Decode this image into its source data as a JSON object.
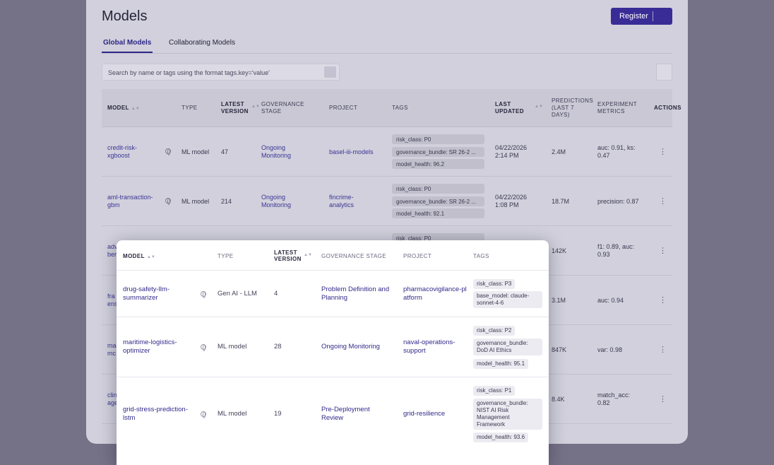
{
  "page": {
    "title": "Models",
    "register_label": "Register",
    "tabs": [
      {
        "label": "Global Models",
        "active": true
      },
      {
        "label": "Collaborating Models",
        "active": false
      }
    ],
    "search_placeholder": "Search by name or tags using the format tags.key='value'"
  },
  "colors": {
    "accent": "#3a2c97",
    "backdrop": "#757187"
  },
  "table": {
    "headers": {
      "model": "MODEL",
      "type": "TYPE",
      "latest_version": "LATEST VERSION",
      "governance_stage": "GOVERNANCE STAGE",
      "project": "PROJECT",
      "tags": "TAGS",
      "last_updated": "LAST UPDATED",
      "predictions": "PREDICTIONS (LAST 7 DAYS)",
      "metrics": "EXPERIMENT METRICS",
      "actions": "ACTIONS"
    },
    "rows": [
      {
        "model": "credit-risk-xgboost",
        "type": "ML model",
        "version": "47",
        "stage": "Ongoing Monitoring",
        "project": "basel-iii-models",
        "tags": [
          "risk_class: P0",
          "governance_bundle: SR 26-2 ...",
          "model_health: 96.2"
        ],
        "updated_date": "04/22/2026",
        "updated_time": "2:14 PM",
        "predictions": "2.4M",
        "metrics": "auc: 0.91, ks: 0.47"
      },
      {
        "model": "aml-transaction-gbm",
        "type": "ML model",
        "version": "214",
        "stage": "Ongoing Monitoring",
        "project": "fincrime-analytics",
        "tags": [
          "risk_class: P0",
          "governance_bundle: SR 26-2 ...",
          "model_health: 92.1"
        ],
        "updated_date": "04/22/2026",
        "updated_time": "1:08 PM",
        "predictions": "18.7M",
        "metrics": "precision: 0.87"
      },
      {
        "model": "adv",
        "model2": "ber",
        "tag": "risk_class: P0",
        "predictions": "142K",
        "metrics": "f1: 0.89, auc: 0.93"
      },
      {
        "model": "fra",
        "model2": "ens",
        "predictions": "3.1M",
        "metrics": "auc: 0.94"
      },
      {
        "model": "ma",
        "model2": "mc",
        "predictions": "847K",
        "metrics": "var: 0.98"
      },
      {
        "model": "clin",
        "model2": "age",
        "predictions": "8.4K",
        "metrics": "match_acc: 0.82"
      }
    ]
  },
  "popup": {
    "headers": {
      "model": "MODEL",
      "type": "TYPE",
      "latest_version": "LATEST VERSION",
      "governance_stage": "GOVERNANCE STAGE",
      "project": "PROJECT",
      "tags": "TAGS"
    },
    "rows": [
      {
        "model": "drug-safety-llm-summarizer",
        "type": "Gen AI - LLM",
        "version": "4",
        "stage": "Problem Definition and Planning",
        "project": "pharmacovigilance-platform",
        "tags": [
          "risk_class: P3",
          "base_model: claude-sonnet-4-6"
        ]
      },
      {
        "model": "maritime-logistics-optimizer",
        "type": "ML model",
        "version": "28",
        "stage": "Ongoing Monitoring",
        "project": "naval-operations-support",
        "tags": [
          "risk_class: P2",
          "governance_bundle: DoD AI Ethics",
          "model_health: 95.1"
        ]
      },
      {
        "model": "grid-stress-prediction-lstm",
        "type": "ML model",
        "version": "19",
        "stage": "Pre-Deployment Review",
        "project": "grid-resilience",
        "tags": [
          "risk_class: P1",
          "governance_bundle: NIST AI Risk Management Framework",
          "model_health: 93.6"
        ]
      }
    ]
  }
}
